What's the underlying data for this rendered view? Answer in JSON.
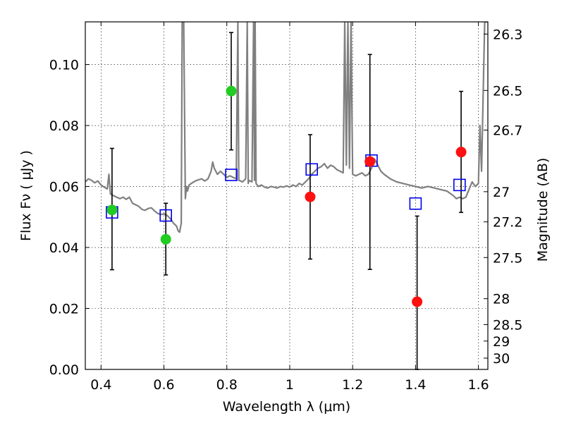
{
  "chart_data": {
    "type": "scatter",
    "title": "",
    "xlabel": "Wavelength  λ (μm)",
    "ylabel": "Flux  Fν  ( μJy )",
    "ylabel_right": "Magnitude (AB)",
    "xlim": [
      0.35,
      1.63
    ],
    "ylim": [
      0.0,
      0.114
    ],
    "x_ticks": [
      0.4,
      0.6,
      0.8,
      1.0,
      1.2,
      1.4,
      1.6
    ],
    "x_tick_labels": [
      "0.4",
      "0.6",
      "0.8",
      "1",
      "1.2",
      "1.4",
      "1.6"
    ],
    "y_ticks": [
      0.0,
      0.02,
      0.04,
      0.06,
      0.08,
      0.1
    ],
    "y_tick_labels": [
      "0.00",
      "0.02",
      "0.04",
      "0.06",
      "0.08",
      "0.10"
    ],
    "right_ticks": [
      {
        "label": "26.3",
        "flux": 0.11
      },
      {
        "label": "26.5",
        "flux": 0.0915
      },
      {
        "label": "26.7",
        "flux": 0.0785
      },
      {
        "label": "27",
        "flux": 0.0583
      },
      {
        "label": "27.2",
        "flux": 0.0484
      },
      {
        "label": "27.5",
        "flux": 0.0367
      },
      {
        "label": "28",
        "flux": 0.0232
      },
      {
        "label": "28.5",
        "flux": 0.0147
      },
      {
        "label": "29",
        "flux": 0.0093
      },
      {
        "label": "30",
        "flux": 0.0037
      }
    ],
    "grid": true,
    "colors": {
      "green_points": "#22cc22",
      "red_points": "#ff1010",
      "model_boxes": "#0000ee",
      "spectrum": "#808080",
      "errorbars": "#000000"
    },
    "series": [
      {
        "points": [
          {
            "x": 0.435,
            "y": 0.0523,
            "yerr_low": 0.0327,
            "yerr_high": 0.0725
          },
          {
            "x": 0.606,
            "y": 0.0427,
            "yerr_low": 0.031,
            "yerr_high": 0.0545
          },
          {
            "x": 0.814,
            "y": 0.0913,
            "yerr_low": 0.072,
            "yerr_high": 0.1105
          }
        ]
      },
      {
        "points": [
          {
            "x": 1.065,
            "y": 0.0566,
            "yerr_low": 0.0362,
            "yerr_high": 0.077
          },
          {
            "x": 1.255,
            "y": 0.0682,
            "yerr_low": 0.0328,
            "yerr_high": 0.1033
          },
          {
            "x": 1.405,
            "y": 0.0222,
            "yerr_low": 0.0,
            "yerr_high": 0.0503
          },
          {
            "x": 1.545,
            "y": 0.0713,
            "yerr_low": 0.0515,
            "yerr_high": 0.0912
          }
        ]
      },
      {
        "points": [
          {
            "x": 0.435,
            "y": 0.0515
          },
          {
            "x": 0.606,
            "y": 0.0505
          },
          {
            "x": 0.814,
            "y": 0.0638
          },
          {
            "x": 1.07,
            "y": 0.0656
          },
          {
            "x": 1.26,
            "y": 0.0685
          },
          {
            "x": 1.4,
            "y": 0.0544
          },
          {
            "x": 1.54,
            "y": 0.0605
          }
        ]
      },
      {
        "points": [
          [
            0.35,
            0.0615
          ],
          [
            0.36,
            0.0625
          ],
          [
            0.37,
            0.062
          ],
          [
            0.38,
            0.0612
          ],
          [
            0.39,
            0.0618
          ],
          [
            0.4,
            0.0605
          ],
          [
            0.41,
            0.0598
          ],
          [
            0.42,
            0.0592
          ],
          [
            0.425,
            0.064
          ],
          [
            0.43,
            0.0575
          ],
          [
            0.44,
            0.057
          ],
          [
            0.45,
            0.0565
          ],
          [
            0.46,
            0.056
          ],
          [
            0.47,
            0.0565
          ],
          [
            0.48,
            0.0558
          ],
          [
            0.49,
            0.0565
          ],
          [
            0.5,
            0.0545
          ],
          [
            0.51,
            0.054
          ],
          [
            0.52,
            0.0535
          ],
          [
            0.53,
            0.0525
          ],
          [
            0.54,
            0.0522
          ],
          [
            0.55,
            0.0528
          ],
          [
            0.56,
            0.053
          ],
          [
            0.57,
            0.052
          ],
          [
            0.58,
            0.0512
          ],
          [
            0.59,
            0.0508
          ],
          [
            0.6,
            0.051
          ],
          [
            0.61,
            0.0505
          ],
          [
            0.62,
            0.0495
          ],
          [
            0.63,
            0.048
          ],
          [
            0.64,
            0.047
          ],
          [
            0.645,
            0.0455
          ],
          [
            0.65,
            0.045
          ],
          [
            0.655,
            0.048
          ],
          [
            0.658,
            0.114
          ],
          [
            0.663,
            0.114
          ],
          [
            0.668,
            0.056
          ],
          [
            0.672,
            0.06
          ],
          [
            0.675,
            0.0585
          ],
          [
            0.68,
            0.0605
          ],
          [
            0.69,
            0.0612
          ],
          [
            0.7,
            0.0618
          ],
          [
            0.71,
            0.0622
          ],
          [
            0.72,
            0.0625
          ],
          [
            0.73,
            0.0618
          ],
          [
            0.74,
            0.0625
          ],
          [
            0.75,
            0.065
          ],
          [
            0.755,
            0.068
          ],
          [
            0.76,
            0.066
          ],
          [
            0.77,
            0.064
          ],
          [
            0.78,
            0.065
          ],
          [
            0.79,
            0.064
          ],
          [
            0.8,
            0.063
          ],
          [
            0.81,
            0.0635
          ],
          [
            0.82,
            0.063
          ],
          [
            0.83,
            0.0625
          ],
          [
            0.835,
            0.114
          ],
          [
            0.838,
            0.062
          ],
          [
            0.84,
            0.062
          ],
          [
            0.85,
            0.0615
          ],
          [
            0.86,
            0.0625
          ],
          [
            0.865,
            0.114
          ],
          [
            0.868,
            0.061
          ],
          [
            0.87,
            0.062
          ],
          [
            0.88,
            0.0615
          ],
          [
            0.885,
            0.114
          ],
          [
            0.888,
            0.062
          ],
          [
            0.89,
            0.114
          ],
          [
            0.893,
            0.061
          ],
          [
            0.9,
            0.06
          ],
          [
            0.91,
            0.0605
          ],
          [
            0.92,
            0.0598
          ],
          [
            0.93,
            0.0595
          ],
          [
            0.94,
            0.06
          ],
          [
            0.95,
            0.0598
          ],
          [
            0.96,
            0.0595
          ],
          [
            0.97,
            0.06
          ],
          [
            0.98,
            0.0598
          ],
          [
            0.99,
            0.0602
          ],
          [
            1.0,
            0.0598
          ],
          [
            1.01,
            0.0605
          ],
          [
            1.02,
            0.06
          ],
          [
            1.03,
            0.061
          ],
          [
            1.04,
            0.0605
          ],
          [
            1.05,
            0.0615
          ],
          [
            1.06,
            0.0625
          ],
          [
            1.07,
            0.064
          ],
          [
            1.08,
            0.065
          ],
          [
            1.09,
            0.066
          ],
          [
            1.1,
            0.0665
          ],
          [
            1.11,
            0.0675
          ],
          [
            1.12,
            0.066
          ],
          [
            1.13,
            0.067
          ],
          [
            1.14,
            0.0665
          ],
          [
            1.15,
            0.0655
          ],
          [
            1.16,
            0.065
          ],
          [
            1.17,
            0.0645
          ],
          [
            1.175,
            0.114
          ],
          [
            1.18,
            0.067
          ],
          [
            1.185,
            0.114
          ],
          [
            1.19,
            0.066
          ],
          [
            1.195,
            0.114
          ],
          [
            1.2,
            0.064
          ],
          [
            1.21,
            0.0635
          ],
          [
            1.22,
            0.064
          ],
          [
            1.23,
            0.0645
          ],
          [
            1.24,
            0.0635
          ],
          [
            1.25,
            0.064
          ],
          [
            1.26,
            0.066
          ],
          [
            1.27,
            0.069
          ],
          [
            1.28,
            0.067
          ],
          [
            1.29,
            0.065
          ],
          [
            1.3,
            0.064
          ],
          [
            1.32,
            0.0625
          ],
          [
            1.34,
            0.0615
          ],
          [
            1.36,
            0.061
          ],
          [
            1.38,
            0.0605
          ],
          [
            1.4,
            0.06
          ],
          [
            1.42,
            0.0595
          ],
          [
            1.44,
            0.06
          ],
          [
            1.46,
            0.0595
          ],
          [
            1.48,
            0.059
          ],
          [
            1.5,
            0.0585
          ],
          [
            1.52,
            0.057
          ],
          [
            1.53,
            0.056
          ],
          [
            1.54,
            0.0565
          ],
          [
            1.55,
            0.056
          ],
          [
            1.56,
            0.0565
          ],
          [
            1.57,
            0.059
          ],
          [
            1.58,
            0.0615
          ],
          [
            1.59,
            0.06
          ],
          [
            1.6,
            0.061
          ],
          [
            1.605,
            0.08
          ],
          [
            1.61,
            0.065
          ],
          [
            1.615,
            0.09
          ],
          [
            1.62,
            0.114
          ],
          [
            1.63,
            0.114
          ]
        ]
      }
    ]
  }
}
